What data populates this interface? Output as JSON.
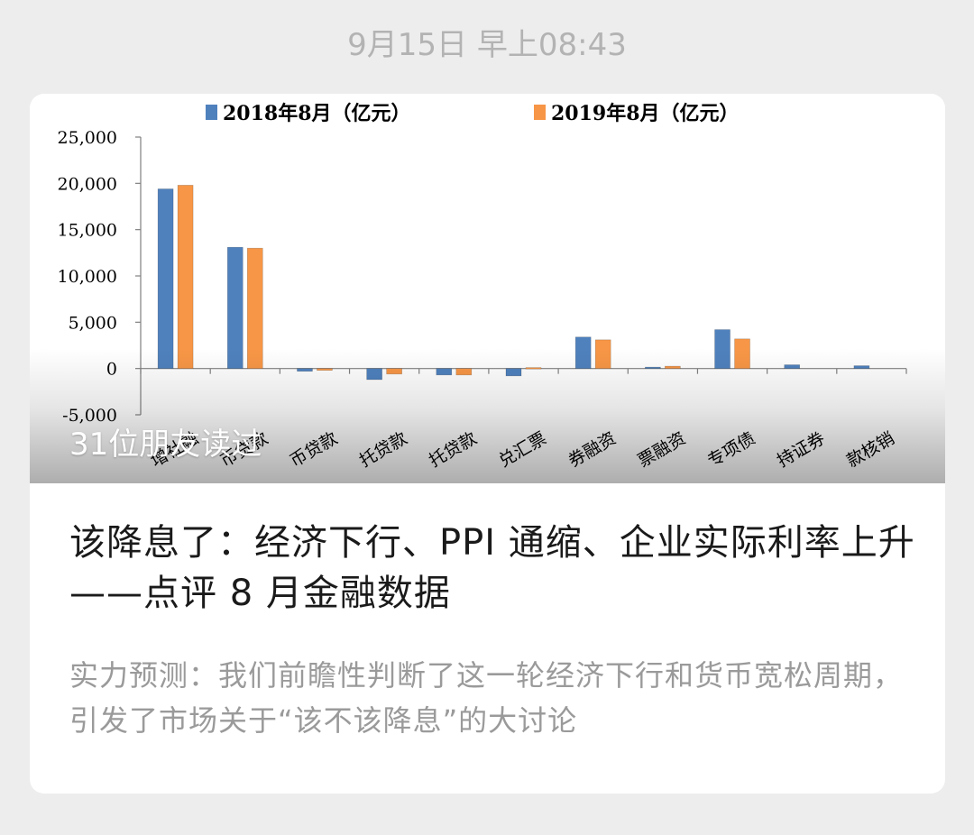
{
  "timestamp": "9月15日 早上08:43",
  "article": {
    "read_count": "31位朋友读过",
    "title": "该降息了：经济下行、PPI 通缩、企业实际利率上升——点评 8 月金融数据",
    "summary": "实力预测：我们前瞻性判断了这一轮经济下行和货币宽松周期，引发了市场关于“该不该降息”的大讨论"
  },
  "chart_data": {
    "type": "bar",
    "categories": [
      "新增社融",
      "人民币贷款",
      "外币贷款",
      "委托贷款",
      "信托贷款",
      "未贴现汇票",
      "企业债券融资",
      "股票融资",
      "地方专项债",
      "存款类证券",
      "贷款核销"
    ],
    "tick_labels_visible": [
      "增社融",
      "币贷款",
      "币贷款",
      "托贷款",
      "托贷款",
      "兑汇票",
      "券融资",
      "票融资",
      "专项债",
      "持证券",
      "款核销"
    ],
    "series": [
      {
        "name": "2018年8月（亿元）",
        "color": "#4f81bd",
        "values": [
          19400,
          13100,
          -300,
          -1200,
          -700,
          -800,
          3400,
          150,
          4200,
          400,
          300
        ]
      },
      {
        "name": "2019年8月（亿元）",
        "color": "#f79646",
        "values": [
          19800,
          13000,
          -200,
          -600,
          -700,
          100,
          3100,
          250,
          3200,
          0,
          0
        ]
      }
    ],
    "ylim": [
      -5000,
      25000
    ],
    "yticks": [
      "-5,000",
      "0",
      "5,000",
      "10,000",
      "15,000",
      "20,000",
      "25,000"
    ],
    "ytick_values": [
      -5000,
      0,
      5000,
      10000,
      15000,
      20000,
      25000
    ],
    "legend_position": "top",
    "grid": false
  }
}
